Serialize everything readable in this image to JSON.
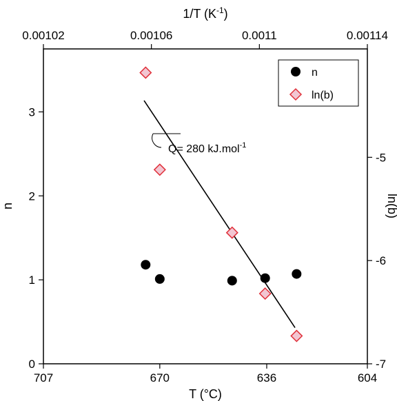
{
  "chart_data": {
    "type": "scatter",
    "x_bottom": {
      "label": "T (°C)",
      "range": [
        707,
        604
      ],
      "ticks": [
        "707",
        "670",
        "636",
        "604"
      ],
      "tick_values": [
        707,
        670,
        636,
        604
      ]
    },
    "x_top": {
      "label_main": "1/T (K",
      "label_sup": "-1",
      "label_end": ")",
      "range": [
        0.00102,
        0.00114
      ],
      "ticks": [
        "0.00102",
        "0.00106",
        "0.0011",
        "0.00114"
      ],
      "tick_values": [
        0.00102,
        0.00106,
        0.0011,
        0.00114
      ]
    },
    "y_left": {
      "label": "n",
      "range": [
        0,
        3.75
      ],
      "ticks": [
        "0",
        "1",
        "2",
        "3"
      ],
      "tick_values": [
        0,
        1,
        2,
        3
      ]
    },
    "y_right": {
      "label": "ln(b)",
      "range": [
        -7,
        -3.95
      ],
      "ticks": [
        "-7",
        "-6",
        "-5"
      ],
      "tick_values": [
        -7,
        -6,
        -5
      ]
    },
    "series": [
      {
        "name": "n",
        "axis": "left",
        "marker": "circle",
        "color": "#000000",
        "points": [
          {
            "x": 674.5,
            "y": 1.18
          },
          {
            "x": 670,
            "y": 1.01
          },
          {
            "x": 647,
            "y": 0.99
          },
          {
            "x": 636.5,
            "y": 1.02
          },
          {
            "x": 626.5,
            "y": 1.07
          }
        ]
      },
      {
        "name": "ln(b)",
        "axis": "right",
        "marker": "diamond",
        "color": "#e0303a",
        "fill": "#f2c6d2",
        "points": [
          {
            "x": 674.5,
            "y": -4.18
          },
          {
            "x": 670,
            "y": -5.12
          },
          {
            "x": 647,
            "y": -5.73
          },
          {
            "x": 636.5,
            "y": -6.32
          },
          {
            "x": 626.5,
            "y": -6.73
          }
        ]
      }
    ],
    "fit_line": {
      "axis": "right",
      "from": {
        "x": 675,
        "y": -4.45
      },
      "to": {
        "x": 627,
        "y": -6.65
      }
    },
    "annotation": {
      "text_main": "Q= 280 kJ.mol",
      "text_sup": "-1"
    },
    "legend": {
      "position": "top-right"
    }
  }
}
